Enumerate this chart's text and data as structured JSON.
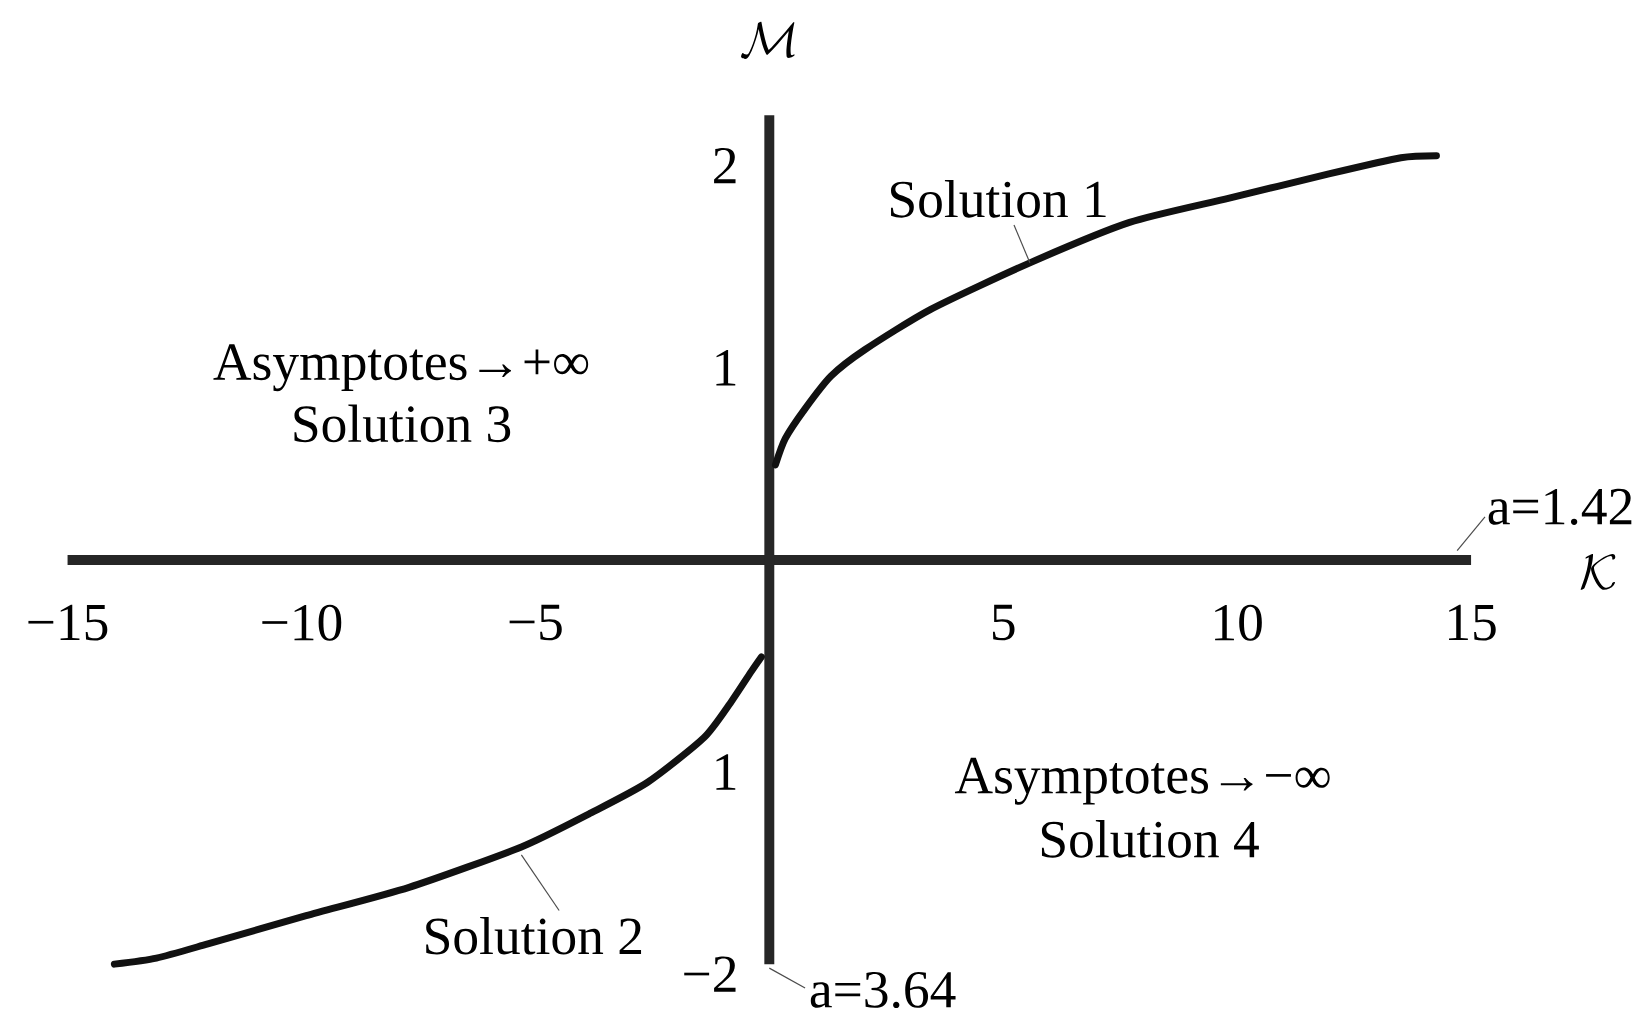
{
  "chart_data": {
    "type": "line",
    "xlabel": "\\mathcal{K}",
    "ylabel": "\\mathcal{M}",
    "xlim": [
      -15,
      15
    ],
    "ylim": [
      -2,
      2.2
    ],
    "xticks": [
      {
        "value": -15,
        "label": "−15"
      },
      {
        "value": -10,
        "label": "−10"
      },
      {
        "value": -5,
        "label": "−5"
      },
      5,
      10,
      15
    ],
    "yticks": [
      {
        "value": -2,
        "label": "−2"
      },
      {
        "value": -1,
        "label": "1"
      },
      1,
      2
    ],
    "series": [
      {
        "name": "Solution 1",
        "color": "#111111",
        "x": [
          0.13,
          0.34,
          0.77,
          1.32,
          2.04,
          3.45,
          5.57,
          7.7,
          9.83,
          11.96,
          13.5,
          14.26
        ],
        "values": [
          0.47,
          0.6,
          0.75,
          0.91,
          1.04,
          1.24,
          1.47,
          1.67,
          1.79,
          1.91,
          1.99,
          2.0
        ]
      },
      {
        "name": "Solution 2",
        "color": "#111111",
        "x": [
          -0.17,
          -0.38,
          -0.81,
          -1.4,
          -2.6,
          -3.8,
          -5.3,
          -7.7,
          -9.9,
          -12.0,
          -13.1,
          -14.0
        ],
        "values": [
          -0.48,
          -0.55,
          -0.7,
          -0.88,
          -1.1,
          -1.25,
          -1.42,
          -1.62,
          -1.76,
          -1.9,
          -1.97,
          -2.0
        ]
      }
    ],
    "annotations": [
      "Asymptotes→+∞",
      "Solution 3",
      "Asymptotes→−∞",
      "Solution 4",
      "a=1.42",
      "a=3.64"
    ]
  }
}
